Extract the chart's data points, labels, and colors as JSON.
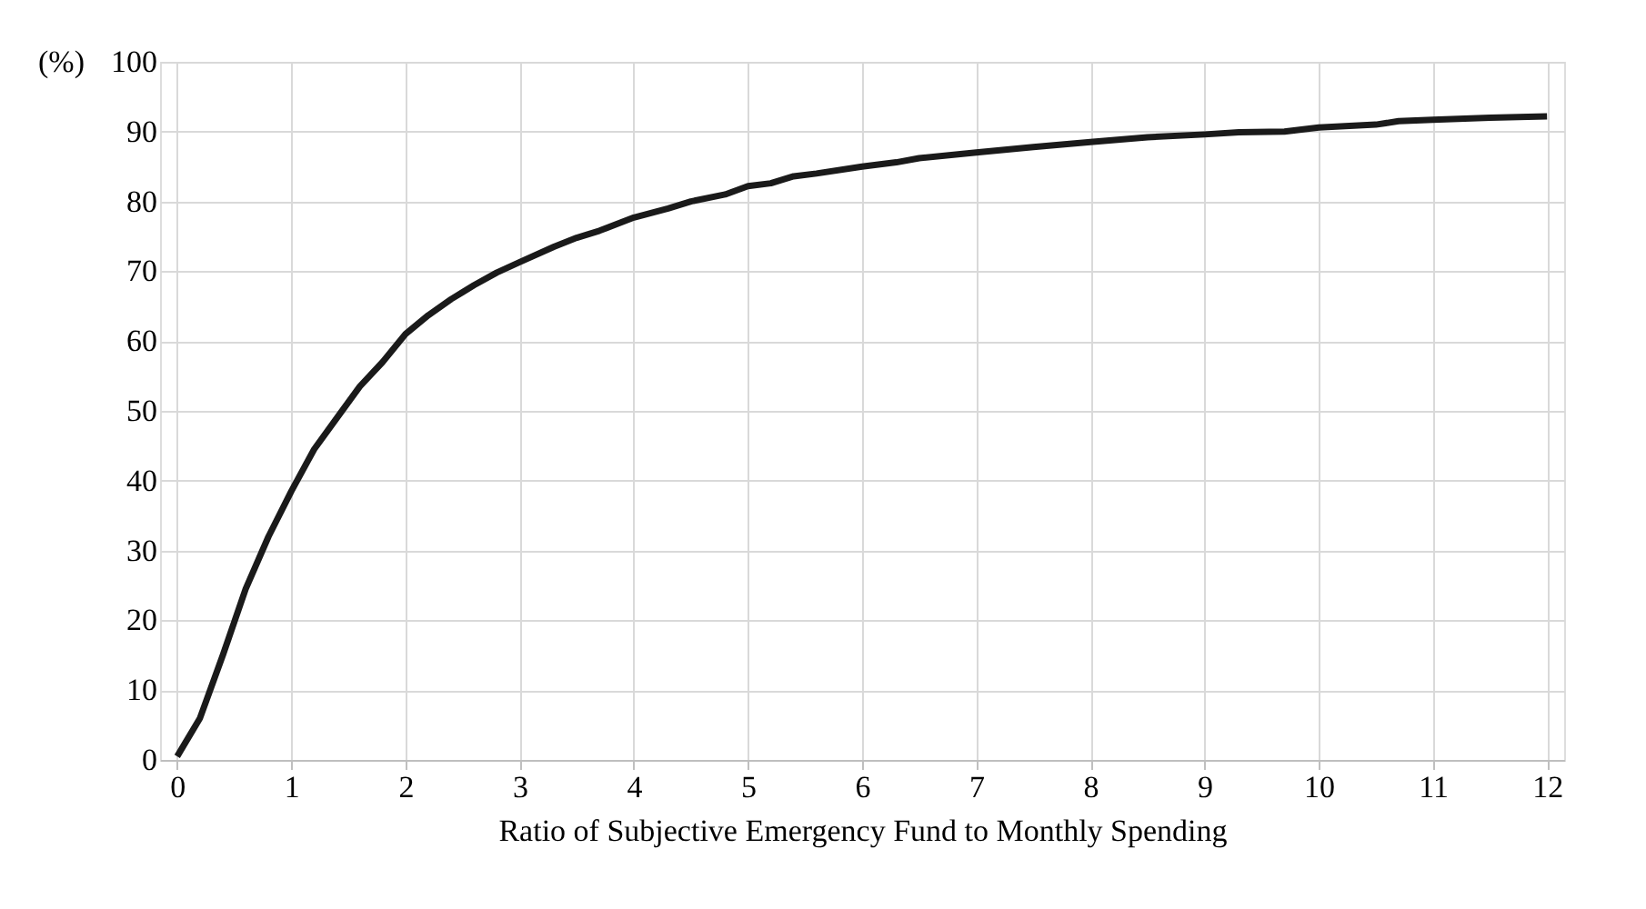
{
  "chart_data": {
    "type": "line",
    "xlabel": "Ratio of Subjective Emergency Fund to Monthly Spending",
    "ylabel": "(%)",
    "x": [
      0,
      0.2,
      0.4,
      0.6,
      0.8,
      1,
      1.2,
      1.4,
      1.6,
      1.8,
      2,
      2.2,
      2.4,
      2.6,
      2.8,
      3,
      3.3,
      3.5,
      3.7,
      4,
      4.3,
      4.5,
      4.8,
      5,
      5.2,
      5.4,
      5.6,
      6,
      6.3,
      6.5,
      7,
      7.5,
      8,
      8.5,
      9,
      9.3,
      9.7,
      10,
      10.5,
      10.7,
      11,
      11.5,
      12
    ],
    "series": [
      {
        "color": "#1a1a1a",
        "values": [
          0.5,
          6,
          15,
          24.5,
          32,
          38.5,
          44.5,
          49,
          53.5,
          57,
          61,
          63.7,
          66,
          68,
          69.8,
          71.3,
          73.5,
          74.8,
          75.8,
          77.7,
          79,
          80,
          81,
          82.2,
          82.6,
          83.6,
          84,
          85,
          85.6,
          86.2,
          87,
          87.8,
          88.5,
          89.2,
          89.6,
          89.9,
          90,
          90.6,
          91,
          91.5,
          91.7,
          92,
          92.2
        ]
      }
    ],
    "xlim": [
      -0.15,
      12.15
    ],
    "xticks": [
      0,
      1,
      2,
      3,
      4,
      5,
      6,
      7,
      8,
      9,
      10,
      11,
      12
    ],
    "ylim": [
      0,
      100
    ],
    "yticks": [
      0,
      10,
      20,
      30,
      40,
      50,
      60,
      70,
      80,
      90,
      100
    ],
    "grid": true,
    "marker": "none",
    "line_style": "solid"
  }
}
